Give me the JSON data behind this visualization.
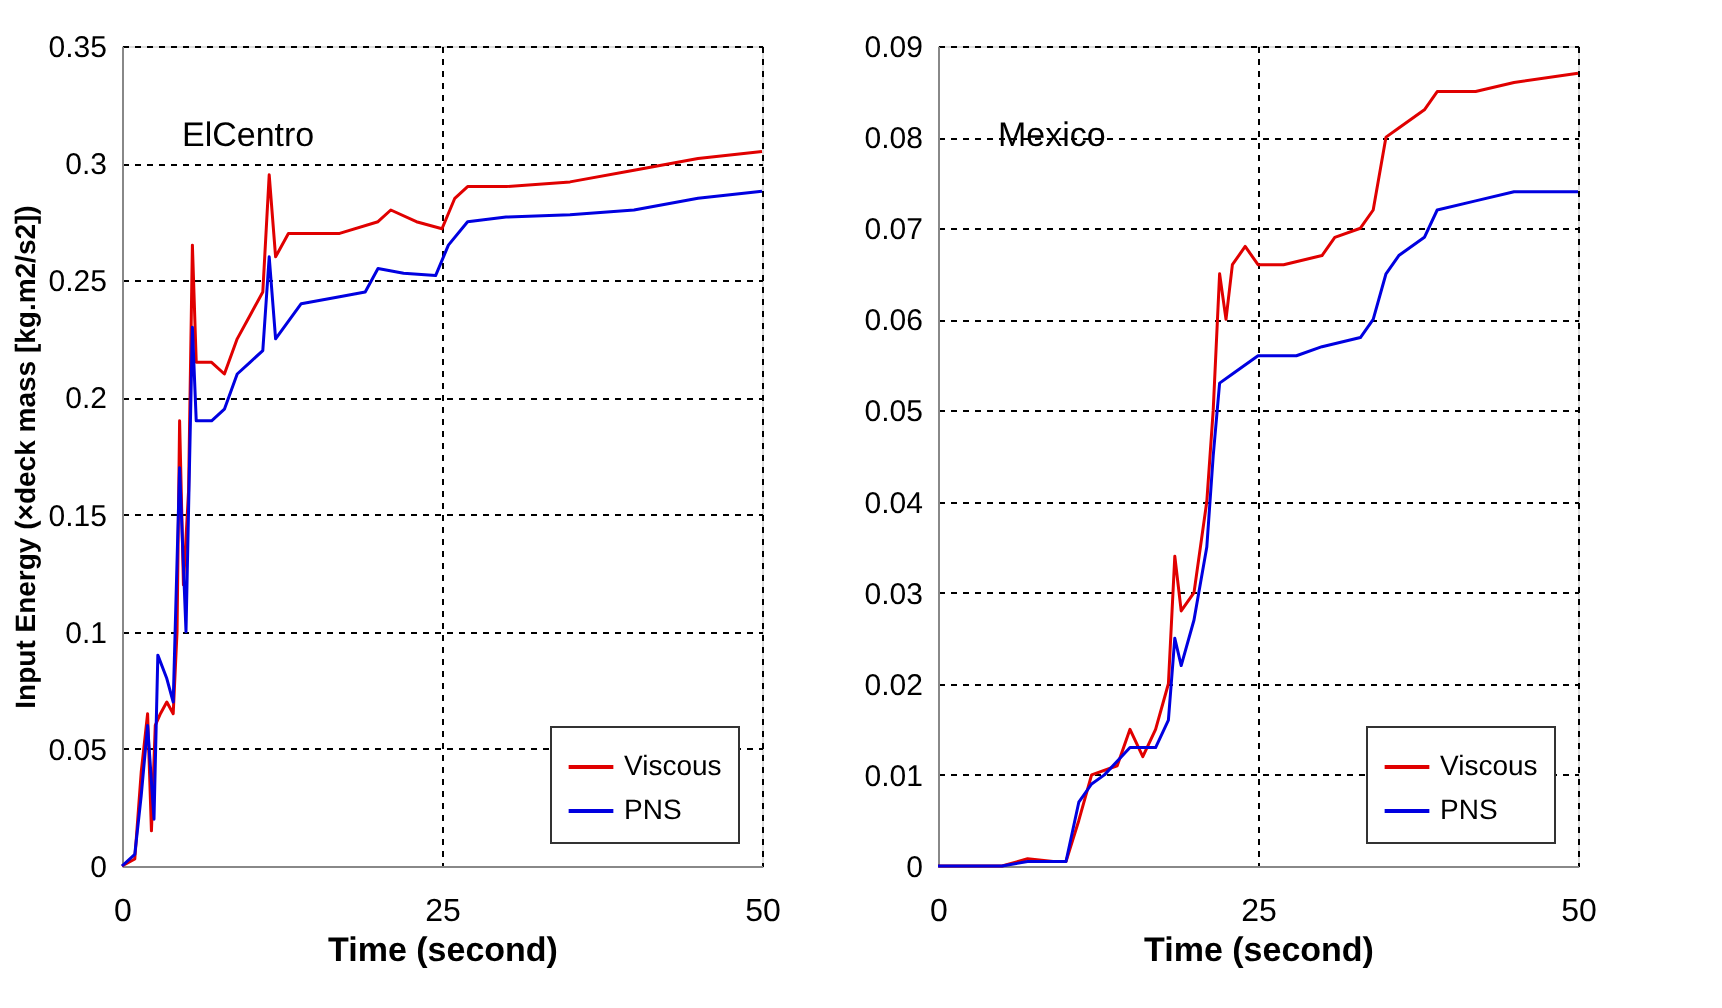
{
  "chart_data": [
    {
      "type": "line",
      "title": "ElCentro",
      "xlabel": "Time (second)",
      "ylabel": "Input Energy (×deck mass [kg.m2/s2])",
      "xlim": [
        0,
        50
      ],
      "xticks": [
        0,
        25,
        50
      ],
      "ylim": [
        0,
        0.35
      ],
      "yticks": [
        0,
        0.05,
        0.1,
        0.15,
        0.2,
        0.25,
        0.3,
        0.35
      ],
      "grid": true,
      "legend": "bottom right",
      "series": [
        {
          "name": "Viscous",
          "color": "#e00000",
          "x": [
            0,
            1,
            1.5,
            2,
            2.3,
            2.6,
            3,
            3.5,
            4,
            4.3,
            4.5,
            4.8,
            5.2,
            5.5,
            5.8,
            7,
            8,
            9,
            10,
            11,
            11.5,
            12,
            13,
            15,
            17,
            20,
            21,
            23,
            25,
            26,
            27,
            30,
            35,
            40,
            45,
            50
          ],
          "values": [
            0,
            0.003,
            0.04,
            0.065,
            0.015,
            0.06,
            0.065,
            0.07,
            0.065,
            0.1,
            0.19,
            0.12,
            0.16,
            0.265,
            0.215,
            0.215,
            0.21,
            0.225,
            0.235,
            0.245,
            0.295,
            0.26,
            0.27,
            0.27,
            0.27,
            0.275,
            0.28,
            0.275,
            0.272,
            0.285,
            0.29,
            0.29,
            0.292,
            0.297,
            0.302,
            0.305
          ]
        },
        {
          "name": "PNS",
          "color": "#0000e0",
          "x": [
            0,
            1,
            1.5,
            2,
            2.5,
            2.8,
            3.5,
            4,
            4.5,
            5,
            5.5,
            5.8,
            7,
            8,
            9,
            10,
            11,
            11.5,
            12,
            14,
            17,
            19,
            20,
            22,
            24.5,
            25.5,
            27,
            30,
            35,
            40,
            45,
            50
          ],
          "values": [
            0,
            0.005,
            0.03,
            0.06,
            0.02,
            0.09,
            0.08,
            0.07,
            0.17,
            0.1,
            0.23,
            0.19,
            0.19,
            0.195,
            0.21,
            0.215,
            0.22,
            0.26,
            0.225,
            0.24,
            0.243,
            0.245,
            0.255,
            0.253,
            0.252,
            0.265,
            0.275,
            0.277,
            0.278,
            0.28,
            0.285,
            0.288
          ]
        }
      ]
    },
    {
      "type": "line",
      "title": "Mexico",
      "xlabel": "Time (second)",
      "xlim": [
        0,
        50
      ],
      "xticks": [
        0,
        25,
        50
      ],
      "ylim": [
        0,
        0.09
      ],
      "yticks": [
        0,
        0.01,
        0.02,
        0.03,
        0.04,
        0.05,
        0.06,
        0.07,
        0.08,
        0.09
      ],
      "grid": true,
      "legend": "bottom right",
      "series": [
        {
          "name": "Viscous",
          "color": "#e00000",
          "x": [
            0,
            5,
            7,
            9,
            10,
            11,
            12,
            14,
            15,
            16,
            17,
            18,
            18.5,
            19,
            20,
            21,
            21.5,
            22,
            22.5,
            23,
            24,
            25,
            27,
            30,
            31,
            33,
            34,
            35,
            36,
            38,
            39,
            42,
            45,
            50
          ],
          "values": [
            0,
            0,
            0.0008,
            0.0005,
            0.0005,
            0.005,
            0.01,
            0.011,
            0.015,
            0.012,
            0.015,
            0.02,
            0.034,
            0.028,
            0.03,
            0.04,
            0.05,
            0.065,
            0.06,
            0.066,
            0.068,
            0.066,
            0.066,
            0.067,
            0.069,
            0.07,
            0.072,
            0.08,
            0.081,
            0.083,
            0.085,
            0.085,
            0.086,
            0.087
          ]
        },
        {
          "name": "PNS",
          "color": "#0000e0",
          "x": [
            0,
            5,
            7,
            10,
            11,
            12,
            13,
            15,
            17,
            18,
            18.5,
            19,
            20,
            21,
            21.5,
            22,
            23,
            25,
            28,
            30,
            33,
            34,
            35,
            36,
            38,
            39,
            42,
            45,
            50
          ],
          "values": [
            0,
            0,
            0.0005,
            0.0005,
            0.007,
            0.009,
            0.01,
            0.013,
            0.013,
            0.016,
            0.025,
            0.022,
            0.027,
            0.035,
            0.045,
            0.053,
            0.054,
            0.056,
            0.056,
            0.057,
            0.058,
            0.06,
            0.065,
            0.067,
            0.069,
            0.072,
            0.073,
            0.074,
            0.074
          ]
        }
      ]
    }
  ]
}
